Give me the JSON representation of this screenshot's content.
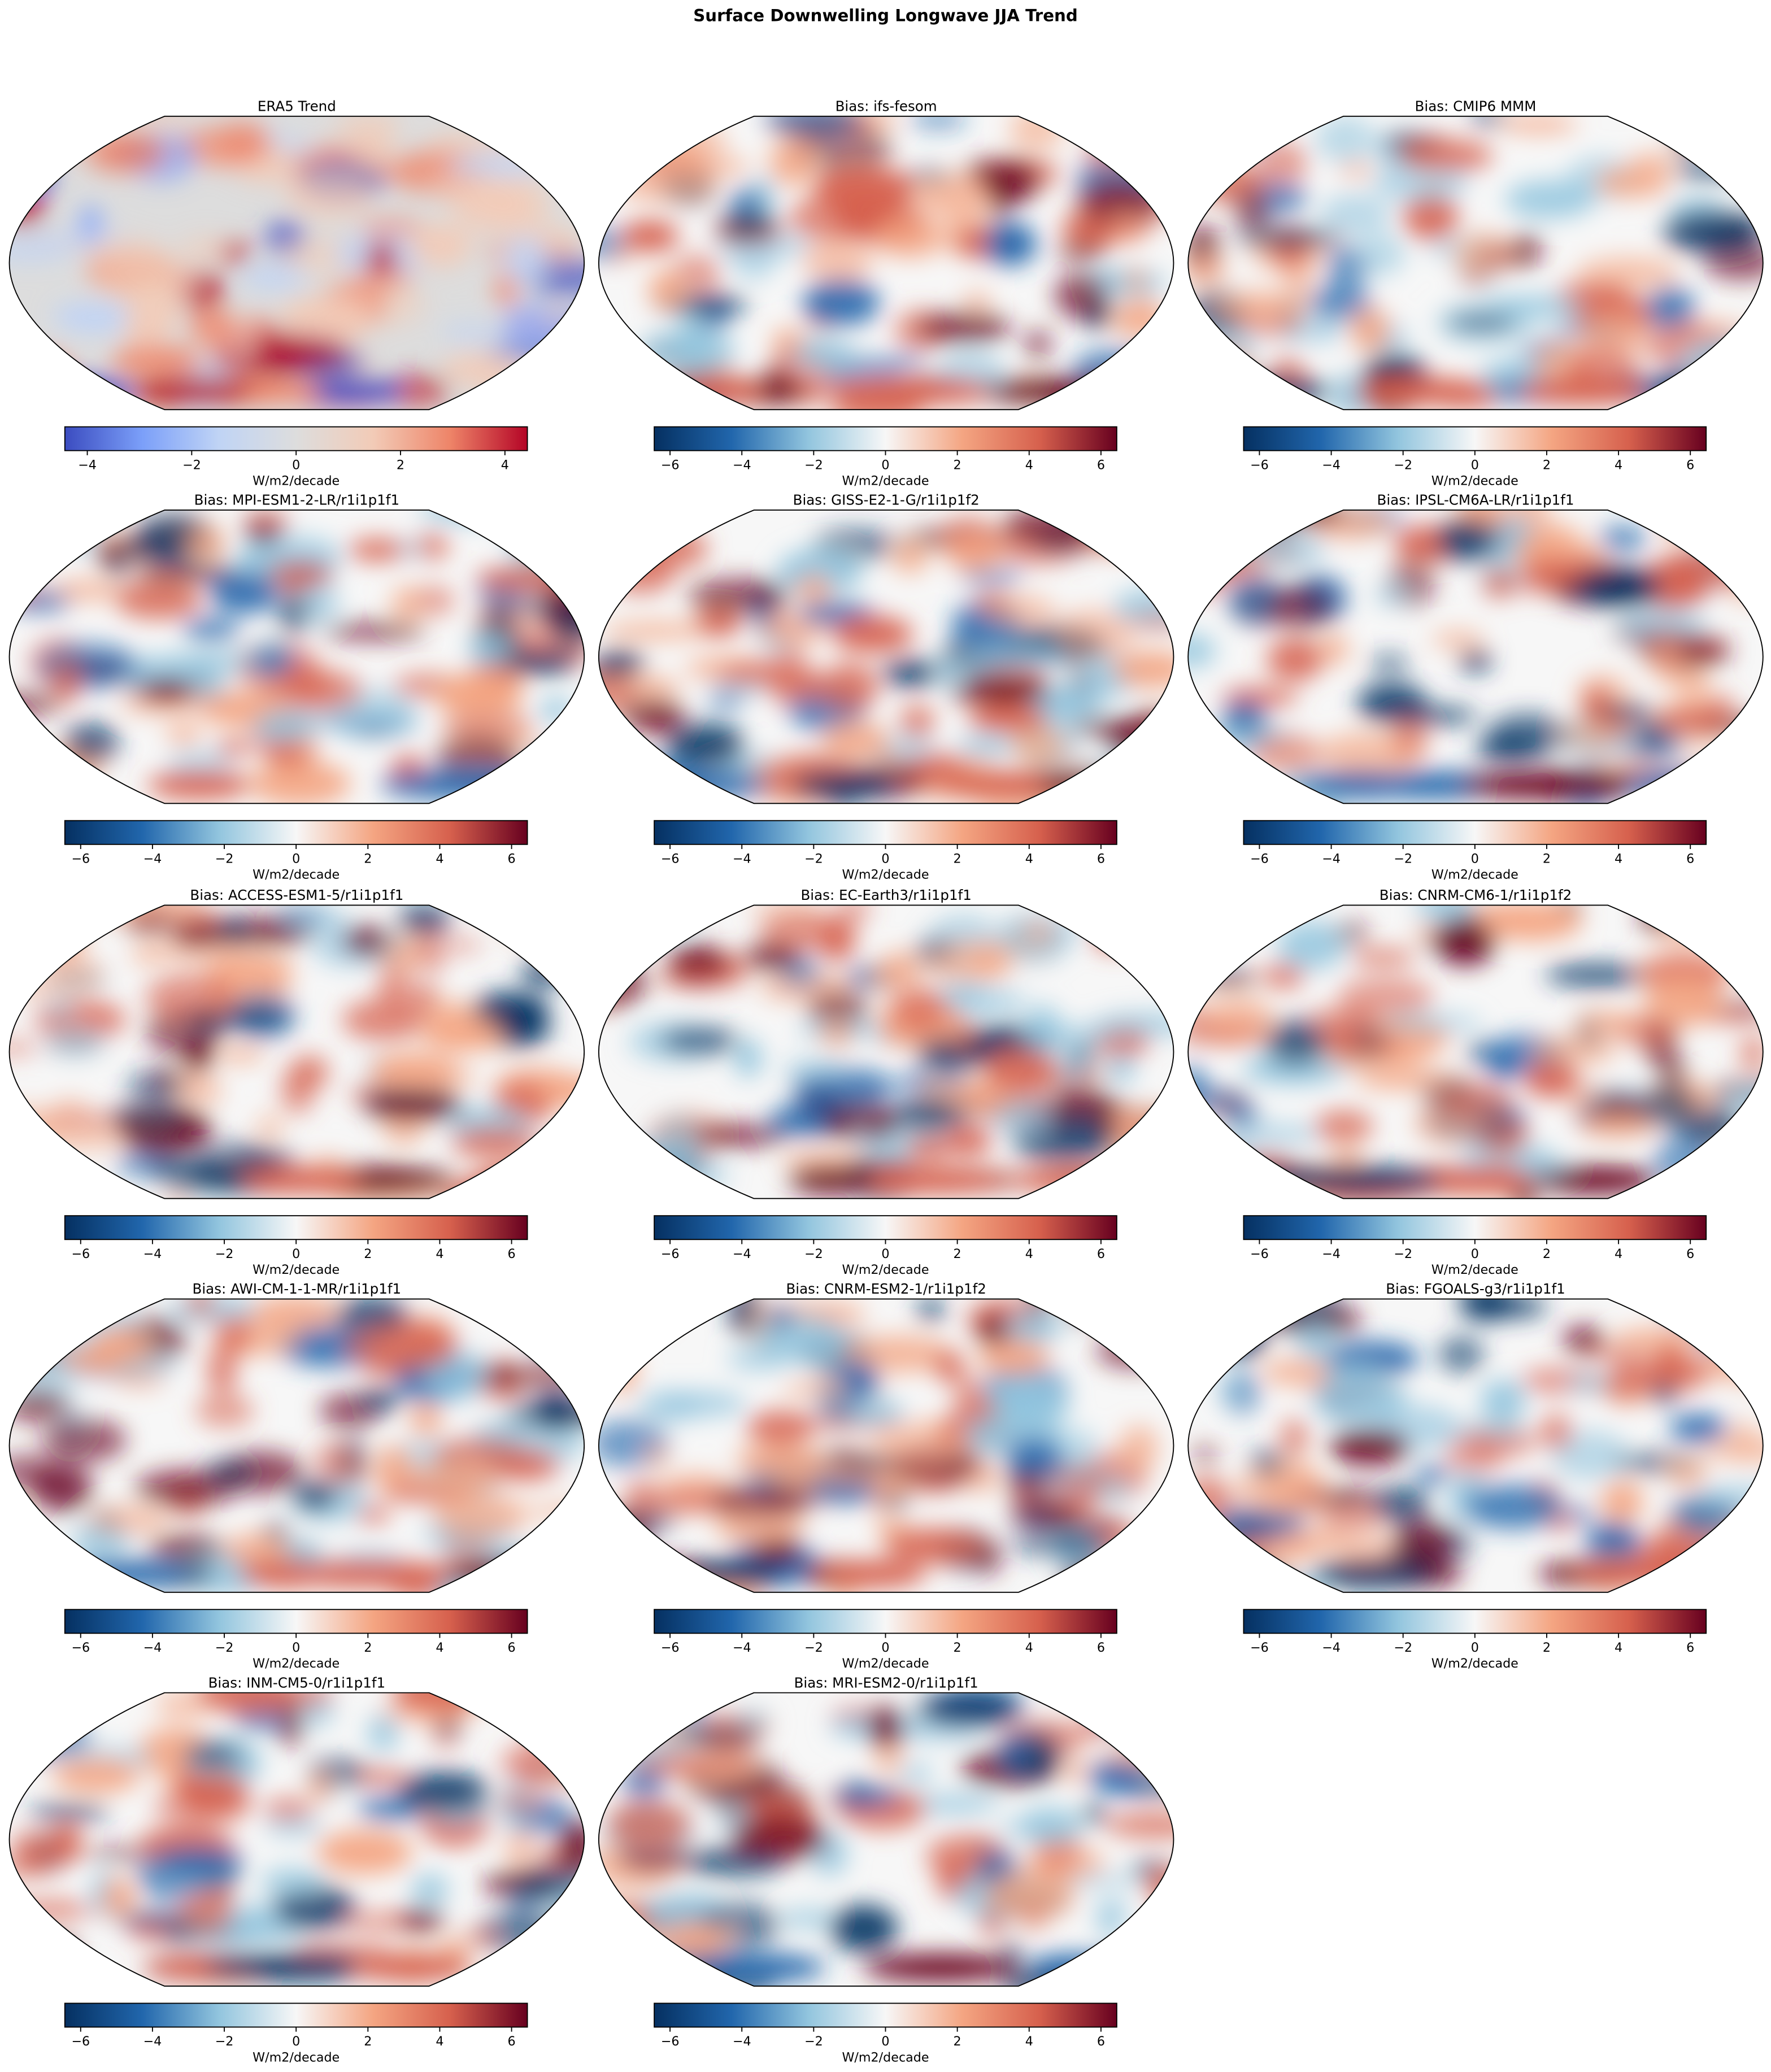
{
  "chart_data": {
    "type": "heatmap",
    "title": "Surface Downwelling Longwave JJA Trend",
    "projection": "Robinson (global maps)",
    "panels": [
      {
        "title": "ERA5 Trend",
        "cmap": "coolwarm",
        "vmin": -4.43,
        "vmax": 4.43,
        "ticks": [
          -4,
          -2,
          0,
          2,
          4
        ],
        "tick_labels": [
          "−4",
          "−2",
          "0",
          "2",
          "4"
        ],
        "cbar_label": "W/m2/decade",
        "seed": 1
      },
      {
        "title": "Bias: ifs-fesom",
        "cmap": "RdBu_r",
        "vmin": -6.44,
        "vmax": 6.44,
        "ticks": [
          -6,
          -4,
          -2,
          0,
          2,
          4,
          6
        ],
        "tick_labels": [
          "−6",
          "−4",
          "−2",
          "0",
          "2",
          "4",
          "6"
        ],
        "cbar_label": "W/m2/decade",
        "seed": 2
      },
      {
        "title": "Bias: CMIP6 MMM",
        "cmap": "RdBu_r",
        "vmin": -6.44,
        "vmax": 6.44,
        "ticks": [
          -6,
          -4,
          -2,
          0,
          2,
          4,
          6
        ],
        "tick_labels": [
          "−6",
          "−4",
          "−2",
          "0",
          "2",
          "4",
          "6"
        ],
        "cbar_label": "W/m2/decade",
        "seed": 3
      },
      {
        "title": "Bias: MPI-ESM1-2-LR/r1i1p1f1",
        "cmap": "RdBu_r",
        "vmin": -6.44,
        "vmax": 6.44,
        "ticks": [
          -6,
          -4,
          -2,
          0,
          2,
          4,
          6
        ],
        "tick_labels": [
          "−6",
          "−4",
          "−2",
          "0",
          "2",
          "4",
          "6"
        ],
        "cbar_label": "W/m2/decade",
        "seed": 4
      },
      {
        "title": "Bias: GISS-E2-1-G/r1i1p1f2",
        "cmap": "RdBu_r",
        "vmin": -6.44,
        "vmax": 6.44,
        "ticks": [
          -6,
          -4,
          -2,
          0,
          2,
          4,
          6
        ],
        "tick_labels": [
          "−6",
          "−4",
          "−2",
          "0",
          "2",
          "4",
          "6"
        ],
        "cbar_label": "W/m2/decade",
        "seed": 5
      },
      {
        "title": "Bias: IPSL-CM6A-LR/r1i1p1f1",
        "cmap": "RdBu_r",
        "vmin": -6.44,
        "vmax": 6.44,
        "ticks": [
          -6,
          -4,
          -2,
          0,
          2,
          4,
          6
        ],
        "tick_labels": [
          "−6",
          "−4",
          "−2",
          "0",
          "2",
          "4",
          "6"
        ],
        "cbar_label": "W/m2/decade",
        "seed": 6
      },
      {
        "title": "Bias: ACCESS-ESM1-5/r1i1p1f1",
        "cmap": "RdBu_r",
        "vmin": -6.44,
        "vmax": 6.44,
        "ticks": [
          -6,
          -4,
          -2,
          0,
          2,
          4,
          6
        ],
        "tick_labels": [
          "−6",
          "−4",
          "−2",
          "0",
          "2",
          "4",
          "6"
        ],
        "cbar_label": "W/m2/decade",
        "seed": 7
      },
      {
        "title": "Bias: EC-Earth3/r1i1p1f1",
        "cmap": "RdBu_r",
        "vmin": -6.44,
        "vmax": 6.44,
        "ticks": [
          -6,
          -4,
          -2,
          0,
          2,
          4,
          6
        ],
        "tick_labels": [
          "−6",
          "−4",
          "−2",
          "0",
          "2",
          "4",
          "6"
        ],
        "cbar_label": "W/m2/decade",
        "seed": 8
      },
      {
        "title": "Bias: CNRM-CM6-1/r1i1p1f2",
        "cmap": "RdBu_r",
        "vmin": -6.44,
        "vmax": 6.44,
        "ticks": [
          -6,
          -4,
          -2,
          0,
          2,
          4,
          6
        ],
        "tick_labels": [
          "−6",
          "−4",
          "−2",
          "0",
          "2",
          "4",
          "6"
        ],
        "cbar_label": "W/m2/decade",
        "seed": 9
      },
      {
        "title": "Bias: AWI-CM-1-1-MR/r1i1p1f1",
        "cmap": "RdBu_r",
        "vmin": -6.44,
        "vmax": 6.44,
        "ticks": [
          -6,
          -4,
          -2,
          0,
          2,
          4,
          6
        ],
        "tick_labels": [
          "−6",
          "−4",
          "−2",
          "0",
          "2",
          "4",
          "6"
        ],
        "cbar_label": "W/m2/decade",
        "seed": 10
      },
      {
        "title": "Bias: CNRM-ESM2-1/r1i1p1f2",
        "cmap": "RdBu_r",
        "vmin": -6.44,
        "vmax": 6.44,
        "ticks": [
          -6,
          -4,
          -2,
          0,
          2,
          4,
          6
        ],
        "tick_labels": [
          "−6",
          "−4",
          "−2",
          "0",
          "2",
          "4",
          "6"
        ],
        "cbar_label": "W/m2/decade",
        "seed": 11
      },
      {
        "title": "Bias: FGOALS-g3/r1i1p1f1",
        "cmap": "RdBu_r",
        "vmin": -6.44,
        "vmax": 6.44,
        "ticks": [
          -6,
          -4,
          -2,
          0,
          2,
          4,
          6
        ],
        "tick_labels": [
          "−6",
          "−4",
          "−2",
          "0",
          "2",
          "4",
          "6"
        ],
        "cbar_label": "W/m2/decade",
        "seed": 12
      },
      {
        "title": "Bias: INM-CM5-0/r1i1p1f1",
        "cmap": "RdBu_r",
        "vmin": -6.44,
        "vmax": 6.44,
        "ticks": [
          -6,
          -4,
          -2,
          0,
          2,
          4,
          6
        ],
        "tick_labels": [
          "−6",
          "−4",
          "−2",
          "0",
          "2",
          "4",
          "6"
        ],
        "cbar_label": "W/m2/decade",
        "seed": 13
      },
      {
        "title": "Bias: MRI-ESM2-0/r1i1p1f1",
        "cmap": "RdBu_r",
        "vmin": -6.44,
        "vmax": 6.44,
        "ticks": [
          -6,
          -4,
          -2,
          0,
          2,
          4,
          6
        ],
        "tick_labels": [
          "−6",
          "−4",
          "−2",
          "0",
          "2",
          "4",
          "6"
        ],
        "cbar_label": "W/m2/decade",
        "seed": 14
      }
    ]
  },
  "colormaps": {
    "coolwarm": [
      "#3b4cc0",
      "#7b9ff9",
      "#c0d4f5",
      "#dddddd",
      "#f2cbb7",
      "#ee8468",
      "#b40426"
    ],
    "RdBu_r": [
      "#053061",
      "#2166ac",
      "#92c5de",
      "#f7f7f7",
      "#f4a582",
      "#d6604d",
      "#67001f"
    ]
  }
}
